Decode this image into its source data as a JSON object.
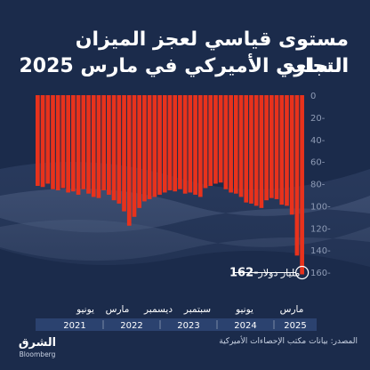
{
  "header": {
    "title_line1": "مستوى قياسي لعجز الميزان التجاري",
    "title_line2": "السلعي الأميركي في مارس 2025"
  },
  "colors": {
    "background": "#1b2b4b",
    "bar": "#e8321c",
    "axis_text": "#8e9bb5",
    "year_band": "#ffffff"
  },
  "chart_data": {
    "type": "bar",
    "ylim": [
      -160,
      0
    ],
    "yticks": [
      0,
      -20,
      -40,
      -60,
      -80,
      -100,
      -120,
      -140,
      -160
    ],
    "ytick_labels": [
      "0",
      "20-",
      "40-",
      "60-",
      "80-",
      "100-",
      "120-",
      "140-",
      "160-"
    ],
    "values": [
      -82,
      -83,
      -80,
      -85,
      -86,
      -84,
      -88,
      -87,
      -90,
      -85,
      -89,
      -92,
      -93,
      -86,
      -90,
      -95,
      -98,
      -105,
      -118,
      -110,
      -102,
      -96,
      -94,
      -92,
      -90,
      -88,
      -86,
      -87,
      -85,
      -89,
      -88,
      -90,
      -92,
      -84,
      -82,
      -80,
      -79,
      -85,
      -88,
      -89,
      -92,
      -97,
      -98,
      -100,
      -102,
      -95,
      -93,
      -94,
      -99,
      -100,
      -108,
      -145,
      -162
    ],
    "month_labels": [
      "يونيو",
      "مارس",
      "ديسمبر",
      "سبتمبر",
      "يونيو",
      "مارس"
    ],
    "month_label_indices": [
      0,
      9,
      18,
      27,
      36,
      45
    ],
    "year_labels": [
      "2021",
      "2022",
      "2023",
      "2024",
      "2025"
    ],
    "annotation": {
      "value": "-162",
      "label": "مليار دولار"
    }
  },
  "footer": {
    "source": "المصدر: بيانات مكتب الإحصاءات الأميركية",
    "logo_arabic": "الشرق",
    "logo_english": "Bloomberg"
  }
}
